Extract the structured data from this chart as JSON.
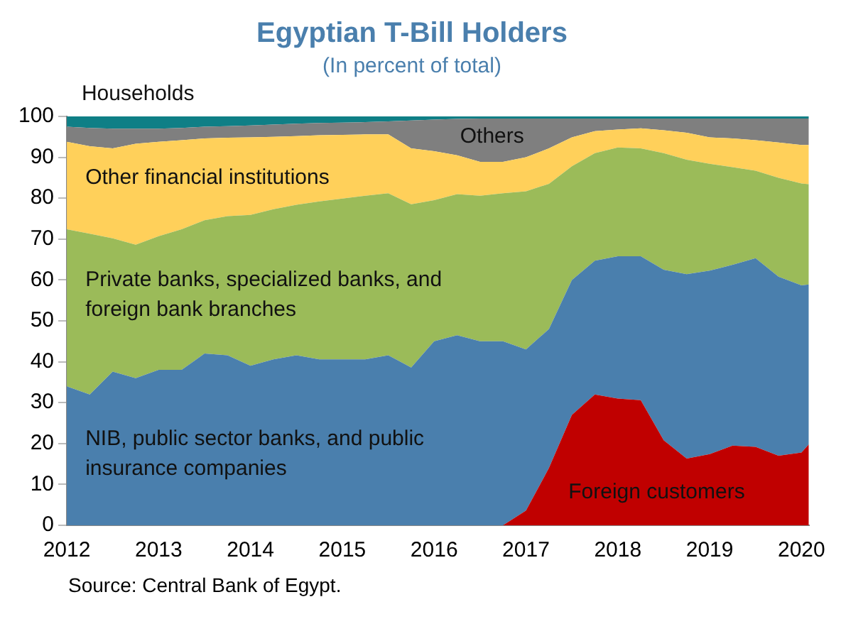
{
  "chart_data": {
    "type": "area",
    "stacked": true,
    "title": "Egyptian T-Bill Holders",
    "subtitle": "(In percent of total)",
    "x": [
      2012,
      2012.25,
      2012.5,
      2012.75,
      2013,
      2013.25,
      2013.5,
      2013.75,
      2014,
      2014.25,
      2014.5,
      2014.75,
      2015,
      2015.25,
      2015.5,
      2015.75,
      2016,
      2016.25,
      2016.5,
      2016.75,
      2017,
      2017.25,
      2017.5,
      2017.75,
      2018,
      2018.25,
      2018.5,
      2018.75,
      2019,
      2019.25,
      2019.5,
      2019.75,
      2020,
      2020.08
    ],
    "series": [
      {
        "name": "Foreign customers",
        "color": "#c00000",
        "values": [
          0,
          0,
          0,
          0,
          0,
          0,
          0,
          0,
          0,
          0,
          0,
          0,
          0,
          0,
          0,
          0,
          0,
          0,
          0,
          0,
          3.6,
          14,
          27,
          32,
          31,
          30.6,
          20.8,
          16.3,
          17.4,
          19.5,
          19.2,
          17,
          17.8,
          19.8
        ]
      },
      {
        "name": "NIB, public sector banks, and public insurance companies",
        "color": "#4a7fad",
        "values": [
          34,
          32,
          37.6,
          36,
          38,
          38,
          42,
          41.6,
          39,
          40.6,
          41.6,
          40.6,
          40.6,
          40.6,
          41.6,
          38.6,
          45,
          46.5,
          45,
          45,
          39.4,
          34,
          33,
          32.7,
          34.8,
          35.2,
          41.7,
          45.1,
          44.9,
          44.2,
          46.1,
          43.8,
          40.9,
          39.1
        ]
      },
      {
        "name": "Private banks, specialized banks, and foreign bank branches",
        "color": "#9bbb59",
        "values": [
          38.4,
          39.3,
          32.6,
          32.6,
          32.7,
          34.4,
          32.6,
          34,
          36.9,
          36.7,
          36.8,
          38.6,
          39.3,
          40,
          39.6,
          39.9,
          34.5,
          34.5,
          35.6,
          36.2,
          38.7,
          35.5,
          27.8,
          26.3,
          26.6,
          26.4,
          28.5,
          28,
          26.1,
          23.9,
          21.4,
          24.2,
          24.9,
          24.5
        ]
      },
      {
        "name": "Other financial institutions",
        "color": "#ffd05a",
        "values": [
          21.4,
          21.4,
          22,
          24.7,
          23.1,
          21.8,
          20,
          19.2,
          19,
          17.7,
          16.8,
          16.2,
          15.6,
          15,
          14.4,
          13.7,
          12,
          9.5,
          8.3,
          7.7,
          8.3,
          8.7,
          7.1,
          5.4,
          4.4,
          4.9,
          5.6,
          6.6,
          6.5,
          7,
          7.5,
          8.6,
          9.4,
          9.6
        ]
      },
      {
        "name": "Others",
        "color": "#7f7f7f",
        "values": [
          3.7,
          4.5,
          4.8,
          3.7,
          3.2,
          3,
          2.9,
          2.8,
          2.9,
          3,
          3,
          3,
          3,
          3,
          3.2,
          6.8,
          7.7,
          8.9,
          10.6,
          10.6,
          9.5,
          7.3,
          4.6,
          3.1,
          2.7,
          2.4,
          2.9,
          3.5,
          4.6,
          4.9,
          5.3,
          5.9,
          6.5,
          6.5
        ]
      },
      {
        "name": "Households",
        "color": "#0f7f86",
        "values": [
          2.5,
          2.8,
          3,
          3,
          3,
          2.8,
          2.5,
          2.4,
          2.2,
          2,
          1.8,
          1.6,
          1.5,
          1.4,
          1.2,
          1,
          0.8,
          0.6,
          0.5,
          0.5,
          0.5,
          0.5,
          0.5,
          0.5,
          0.5,
          0.5,
          0.5,
          0.5,
          0.5,
          0.5,
          0.5,
          0.5,
          0.5,
          0.5
        ]
      }
    ],
    "xlim": [
      2012,
      2020.08
    ],
    "xticks": [
      2012,
      2013,
      2014,
      2015,
      2016,
      2017,
      2018,
      2019,
      2020
    ],
    "ylim": [
      0,
      100
    ],
    "yticks": [
      0,
      10,
      20,
      30,
      40,
      50,
      60,
      70,
      80,
      90,
      100
    ],
    "grid": false,
    "legend": false,
    "annotations": [
      "Source: Central Bank of Egypt."
    ]
  }
}
